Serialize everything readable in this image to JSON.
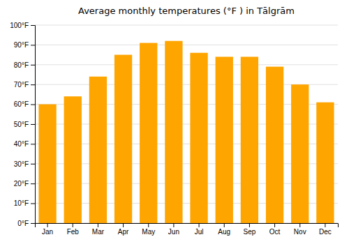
{
  "chart_data": {
    "type": "bar",
    "title": "Average monthly temperatures (°F ) in Tālgrām",
    "categories": [
      "Jan",
      "Feb",
      "Mar",
      "Apr",
      "May",
      "Jun",
      "Jul",
      "Aug",
      "Sep",
      "Oct",
      "Nov",
      "Dec"
    ],
    "values": [
      60,
      64,
      74,
      85,
      91,
      92,
      86,
      84,
      84,
      79,
      70,
      61
    ],
    "color": "#FFA500",
    "ylim": [
      0,
      100
    ],
    "yticks": [
      {
        "value": 0,
        "label": "0°F"
      },
      {
        "value": 10,
        "label": "10°F"
      },
      {
        "value": 20,
        "label": "20°F"
      },
      {
        "value": 30,
        "label": "30°F"
      },
      {
        "value": 40,
        "label": "40°F"
      },
      {
        "value": 50,
        "label": "50°F"
      },
      {
        "value": 60,
        "label": "60°F"
      },
      {
        "value": 70,
        "label": "70°F"
      },
      {
        "value": 80,
        "label": "80°F"
      },
      {
        "value": 90,
        "label": "90°F"
      },
      {
        "value": 100,
        "label": "100°F"
      }
    ],
    "grid": true
  }
}
